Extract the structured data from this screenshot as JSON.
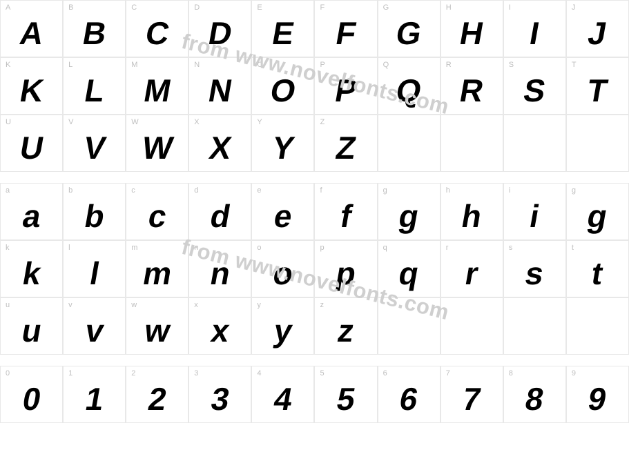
{
  "watermark_text": "from www.novelfonts.com",
  "watermark_color": "#cfcfcf",
  "cell_border_color": "#e8e8e8",
  "label_color": "#bfbfbf",
  "glyph_color": "#000000",
  "background_color": "#ffffff",
  "glyph_fontsize": 46,
  "label_fontsize": 11,
  "grid_columns": 10,
  "sections": [
    {
      "rows": [
        [
          {
            "label": "A",
            "glyph": "A"
          },
          {
            "label": "B",
            "glyph": "B"
          },
          {
            "label": "C",
            "glyph": "C"
          },
          {
            "label": "D",
            "glyph": "D"
          },
          {
            "label": "E",
            "glyph": "E"
          },
          {
            "label": "F",
            "glyph": "F"
          },
          {
            "label": "G",
            "glyph": "G"
          },
          {
            "label": "H",
            "glyph": "H"
          },
          {
            "label": "I",
            "glyph": "I"
          },
          {
            "label": "J",
            "glyph": "J"
          }
        ],
        [
          {
            "label": "K",
            "glyph": "K"
          },
          {
            "label": "L",
            "glyph": "L"
          },
          {
            "label": "M",
            "glyph": "M"
          },
          {
            "label": "N",
            "glyph": "N"
          },
          {
            "label": "O",
            "glyph": "O"
          },
          {
            "label": "P",
            "glyph": "P"
          },
          {
            "label": "Q",
            "glyph": "Q"
          },
          {
            "label": "R",
            "glyph": "R"
          },
          {
            "label": "S",
            "glyph": "S"
          },
          {
            "label": "T",
            "glyph": "T"
          }
        ],
        [
          {
            "label": "U",
            "glyph": "U"
          },
          {
            "label": "V",
            "glyph": "V"
          },
          {
            "label": "W",
            "glyph": "W"
          },
          {
            "label": "X",
            "glyph": "X"
          },
          {
            "label": "Y",
            "glyph": "Y"
          },
          {
            "label": "Z",
            "glyph": "Z"
          },
          {
            "label": "",
            "glyph": ""
          },
          {
            "label": "",
            "glyph": ""
          },
          {
            "label": "",
            "glyph": ""
          },
          {
            "label": "",
            "glyph": ""
          }
        ]
      ]
    },
    {
      "rows": [
        [
          {
            "label": "a",
            "glyph": "a"
          },
          {
            "label": "b",
            "glyph": "b"
          },
          {
            "label": "c",
            "glyph": "c"
          },
          {
            "label": "d",
            "glyph": "d"
          },
          {
            "label": "e",
            "glyph": "e"
          },
          {
            "label": "f",
            "glyph": "f"
          },
          {
            "label": "g",
            "glyph": "g"
          },
          {
            "label": "h",
            "glyph": "h"
          },
          {
            "label": "i",
            "glyph": "i"
          },
          {
            "label": "g",
            "glyph": "g"
          }
        ],
        [
          {
            "label": "k",
            "glyph": "k"
          },
          {
            "label": "l",
            "glyph": "l"
          },
          {
            "label": "m",
            "glyph": "m"
          },
          {
            "label": "n",
            "glyph": "n"
          },
          {
            "label": "o",
            "glyph": "o"
          },
          {
            "label": "p",
            "glyph": "p"
          },
          {
            "label": "q",
            "glyph": "q"
          },
          {
            "label": "r",
            "glyph": "r"
          },
          {
            "label": "s",
            "glyph": "s"
          },
          {
            "label": "t",
            "glyph": "t"
          }
        ],
        [
          {
            "label": "u",
            "glyph": "u"
          },
          {
            "label": "v",
            "glyph": "v"
          },
          {
            "label": "w",
            "glyph": "w"
          },
          {
            "label": "x",
            "glyph": "x"
          },
          {
            "label": "y",
            "glyph": "y"
          },
          {
            "label": "z",
            "glyph": "z"
          },
          {
            "label": "",
            "glyph": ""
          },
          {
            "label": "",
            "glyph": ""
          },
          {
            "label": "",
            "glyph": ""
          },
          {
            "label": "",
            "glyph": ""
          }
        ]
      ]
    },
    {
      "rows": [
        [
          {
            "label": "0",
            "glyph": "0"
          },
          {
            "label": "1",
            "glyph": "1"
          },
          {
            "label": "2",
            "glyph": "2"
          },
          {
            "label": "3",
            "glyph": "3"
          },
          {
            "label": "4",
            "glyph": "4"
          },
          {
            "label": "5",
            "glyph": "5"
          },
          {
            "label": "6",
            "glyph": "6"
          },
          {
            "label": "7",
            "glyph": "7"
          },
          {
            "label": "8",
            "glyph": "8"
          },
          {
            "label": "9",
            "glyph": "9"
          }
        ]
      ]
    }
  ]
}
